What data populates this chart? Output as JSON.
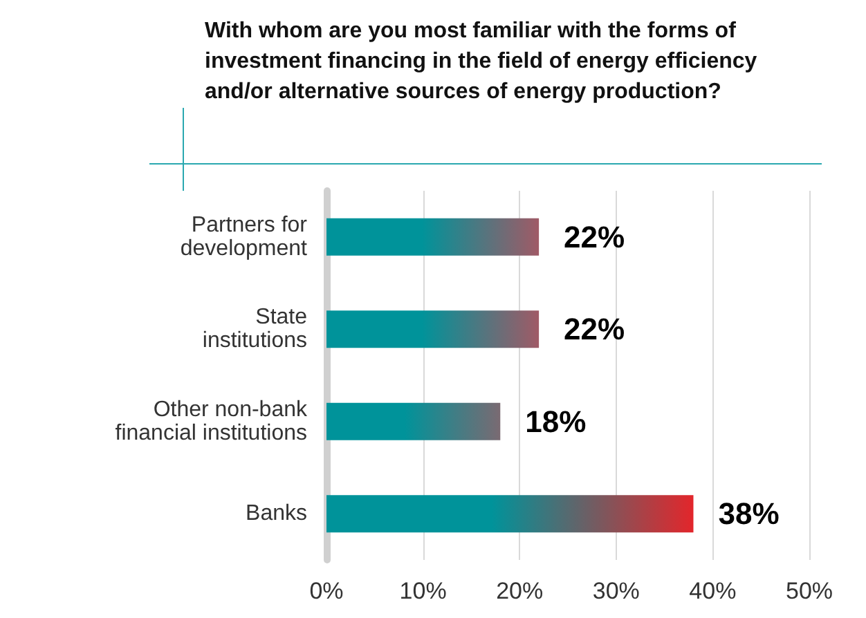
{
  "chart_data": {
    "type": "bar",
    "orientation": "horizontal",
    "title": "With whom are you most familiar with the forms of investment financing in the field of energy efficiency and/or alternative sources of energy production?",
    "categories": [
      "Partners for\ndevelopment",
      "State\ninstitutions",
      "Other non-bank\nfinancial institutions",
      "Banks"
    ],
    "values": [
      22,
      22,
      18,
      38
    ],
    "color": "#00939a",
    "colors": [
      "#a05a66",
      "#a05a66",
      "#7a6a72",
      "#e3262b"
    ],
    "xlim": [
      0,
      50
    ],
    "xticks": [
      {
        "value": 0,
        "label": "0%"
      },
      {
        "value": 10,
        "label": "10%"
      },
      {
        "value": 20,
        "label": "20%"
      },
      {
        "value": 30,
        "label": "30%"
      },
      {
        "value": 40,
        "label": "40%"
      },
      {
        "value": 50,
        "label": "50%"
      }
    ],
    "grid": "x",
    "value_labels": [
      "22%",
      "22%",
      "18%",
      "38%"
    ]
  }
}
